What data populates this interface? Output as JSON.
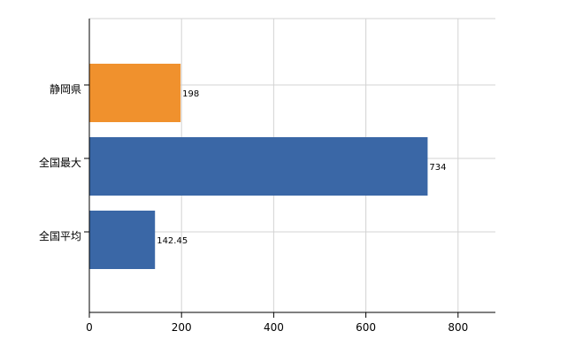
{
  "chart_data": {
    "type": "bar",
    "orientation": "horizontal",
    "categories": [
      "静岡県",
      "全国最大",
      "全国平均"
    ],
    "values": [
      198,
      734,
      142.45
    ],
    "value_labels": [
      "198",
      "734",
      "142.45"
    ],
    "colors": [
      "#f0912d",
      "#3a67a6",
      "#3a67a6"
    ],
    "xlim": [
      0,
      880
    ],
    "xticks": [
      0,
      200,
      400,
      600,
      800
    ],
    "xtick_labels": [
      "0",
      "200",
      "400",
      "600",
      "800"
    ],
    "grid": true,
    "title": "",
    "xlabel": "",
    "ylabel": ""
  }
}
